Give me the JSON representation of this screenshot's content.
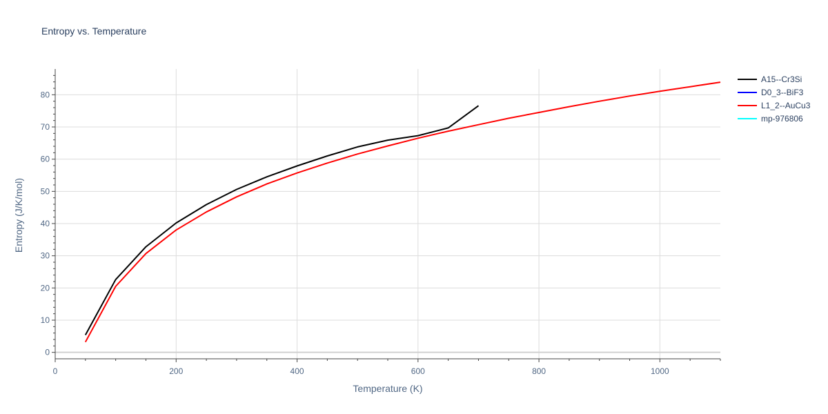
{
  "chart_data": {
    "type": "line",
    "title": "Entropy vs. Temperature",
    "xlabel": "Temperature (K)",
    "ylabel": "Entropy (J/K/mol)",
    "xlim": [
      0,
      1100
    ],
    "ylim": [
      -2,
      88
    ],
    "xticks": [
      0,
      200,
      400,
      600,
      800,
      1000
    ],
    "yticks": [
      0,
      10,
      20,
      30,
      40,
      50,
      60,
      70,
      80
    ],
    "grid": true,
    "legend_position": "top-right outside",
    "series": [
      {
        "name": "A15--Cr3Si",
        "color": "#000000",
        "x": [
          50,
          100,
          150,
          200,
          250,
          300,
          350,
          400,
          450,
          500,
          550,
          600,
          650,
          700
        ],
        "y": [
          5.4,
          22.6,
          32.8,
          40.2,
          45.9,
          50.6,
          54.5,
          57.9,
          61.0,
          63.8,
          65.9,
          67.3,
          69.7,
          76.6
        ]
      },
      {
        "name": "D0_3--BiF3",
        "color": "#0000ff",
        "x": [],
        "y": []
      },
      {
        "name": "L1_2--AuCu3",
        "color": "#ff0000",
        "x": [
          50,
          100,
          150,
          200,
          250,
          300,
          350,
          400,
          450,
          500,
          550,
          600,
          650,
          700,
          750,
          800,
          850,
          900,
          950,
          1000,
          1050,
          1100
        ],
        "y": [
          3.2,
          20.5,
          30.7,
          38.0,
          43.6,
          48.3,
          52.3,
          55.7,
          58.8,
          61.6,
          64.1,
          66.5,
          68.7,
          70.7,
          72.7,
          74.5,
          76.3,
          78.0,
          79.6,
          81.1,
          82.5,
          83.9
        ]
      },
      {
        "name": "mp-976806",
        "color": "#00ffff",
        "x": [],
        "y": []
      }
    ]
  }
}
